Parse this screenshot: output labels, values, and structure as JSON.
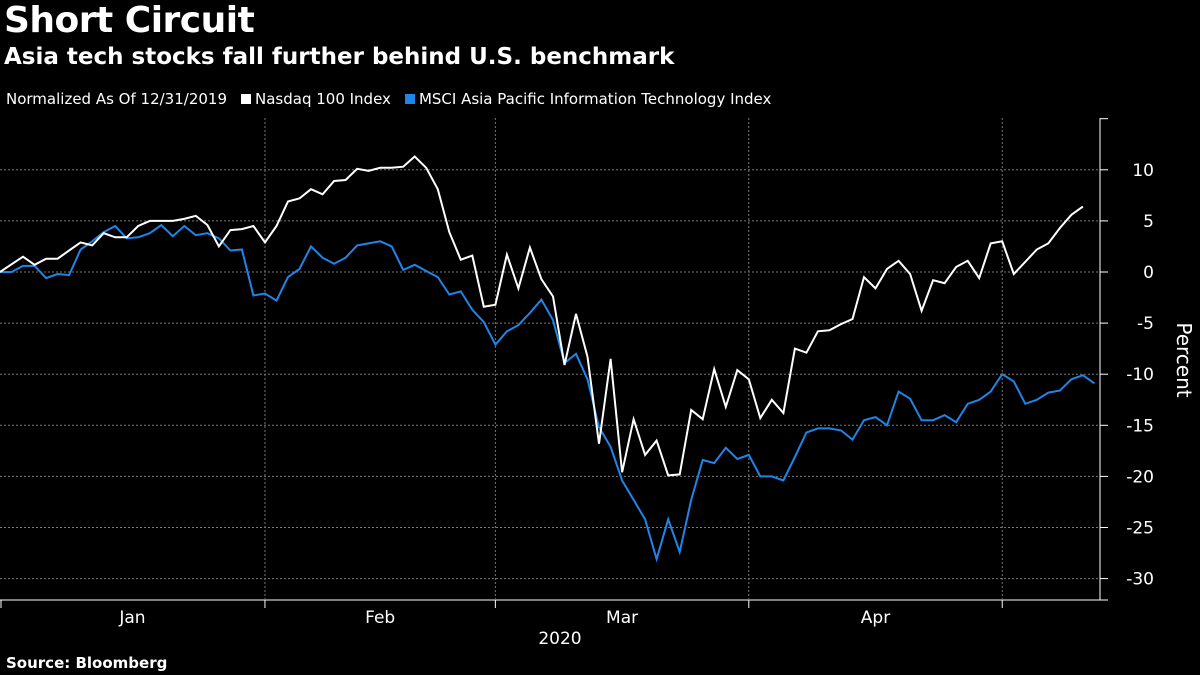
{
  "header": {
    "title": "Short Circuit",
    "subtitle": "Asia tech stocks fall further behind U.S. benchmark"
  },
  "legend": {
    "note": "Normalized As Of 12/31/2019",
    "items": [
      {
        "label": "Nasdaq 100 Index",
        "color": "#ffffff"
      },
      {
        "label": "MSCI Asia Pacific Information Technology Index",
        "color": "#1f85e8"
      }
    ]
  },
  "footer": {
    "source": "Source: Bloomberg"
  },
  "chart_data": {
    "type": "line",
    "title": "Short Circuit",
    "subtitle": "Asia tech stocks fall further behind U.S. benchmark",
    "xlabel": "2020",
    "ylabel": "Percent",
    "ylim": [
      -32,
      15
    ],
    "yticks": [
      10,
      5,
      0,
      -5,
      -10,
      -15,
      -20,
      -25,
      -30
    ],
    "x_unit": "trading day index from 12/31/2019",
    "month_labels": [
      {
        "label": "Jan",
        "start": 0,
        "end": 23
      },
      {
        "label": "Feb",
        "start": 23,
        "end": 43
      },
      {
        "label": "Mar",
        "start": 43,
        "end": 65
      },
      {
        "label": "Apr",
        "start": 65,
        "end": 87
      }
    ],
    "year_label": "2020",
    "grid": true,
    "legend_position": "top-left",
    "series": [
      {
        "name": "Nasdaq 100 Index",
        "color": "#ffffff",
        "values": [
          0,
          0.75,
          1.5,
          0.7,
          1.3,
          1.3,
          2.1,
          2.9,
          2.6,
          3.8,
          3.4,
          3.4,
          4.5,
          5.0,
          5.0,
          5.0,
          5.2,
          5.5,
          4.6,
          2.5,
          4.1,
          4.2,
          4.5,
          2.9,
          4.5,
          6.9,
          7.2,
          8.1,
          7.6,
          8.9,
          9.0,
          10.1,
          9.9,
          10.2,
          10.2,
          10.3,
          11.3,
          10.2,
          8.1,
          3.9,
          1.2,
          1.6,
          -3.4,
          -3.2,
          1.7,
          -1.6,
          2.4,
          -0.7,
          -2.4,
          -9.1,
          -4.1,
          -8.3,
          -16.8,
          -8.5,
          -19.6,
          -14.4,
          -17.9,
          -16.5,
          -19.9,
          -19.8,
          -13.5,
          -14.4,
          -9.5,
          -13.2,
          -9.6,
          -10.5,
          -14.3,
          -12.5,
          -13.8,
          -7.5,
          -7.9,
          -5.8,
          -5.7,
          -5.1,
          -4.6,
          -0.5,
          -1.6,
          0.3,
          1.1,
          -0.2,
          -3.8,
          -0.8,
          -1.1,
          0.5,
          1.1,
          -0.6,
          2.8,
          3.0,
          -0.2,
          1.0,
          2.2,
          2.8,
          4.3,
          5.6,
          6.4
        ]
      },
      {
        "name": "MSCI Asia Pacific Information Technology Index",
        "color": "#1f85e8",
        "values": [
          0,
          0,
          0.6,
          0.6,
          -0.6,
          -0.2,
          -0.3,
          2.2,
          3.0,
          3.9,
          4.5,
          3.3,
          3.4,
          3.8,
          4.6,
          3.5,
          4.5,
          3.6,
          3.8,
          3.3,
          2.1,
          2.2,
          -2.3,
          -2.1,
          -2.8,
          -0.5,
          0.3,
          2.5,
          1.4,
          0.8,
          1.4,
          2.6,
          2.8,
          3.0,
          2.5,
          0.2,
          0.7,
          0.1,
          -0.5,
          -2.2,
          -1.9,
          -3.7,
          -4.9,
          -7.1,
          -5.8,
          -5.2,
          -4.0,
          -2.7,
          -4.7,
          -8.9,
          -8.0,
          -10.5,
          -15.2,
          -17.1,
          -20.4,
          -22.3,
          -24.2,
          -28.1,
          -24.2,
          -27.4,
          -22.3,
          -18.4,
          -18.7,
          -17.2,
          -18.3,
          -17.9,
          -20.0,
          -20.0,
          -20.4,
          -18.1,
          -15.7,
          -15.3,
          -15.3,
          -15.5,
          -16.4,
          -14.5,
          -14.2,
          -15.0,
          -11.7,
          -12.4,
          -14.5,
          -14.5,
          -14.0,
          -14.7,
          -12.9,
          -12.5,
          -11.7,
          -10.0,
          -10.7,
          -12.9,
          -12.5,
          -11.8,
          -11.6,
          -10.5,
          -10.1,
          -10.9
        ]
      }
    ]
  }
}
